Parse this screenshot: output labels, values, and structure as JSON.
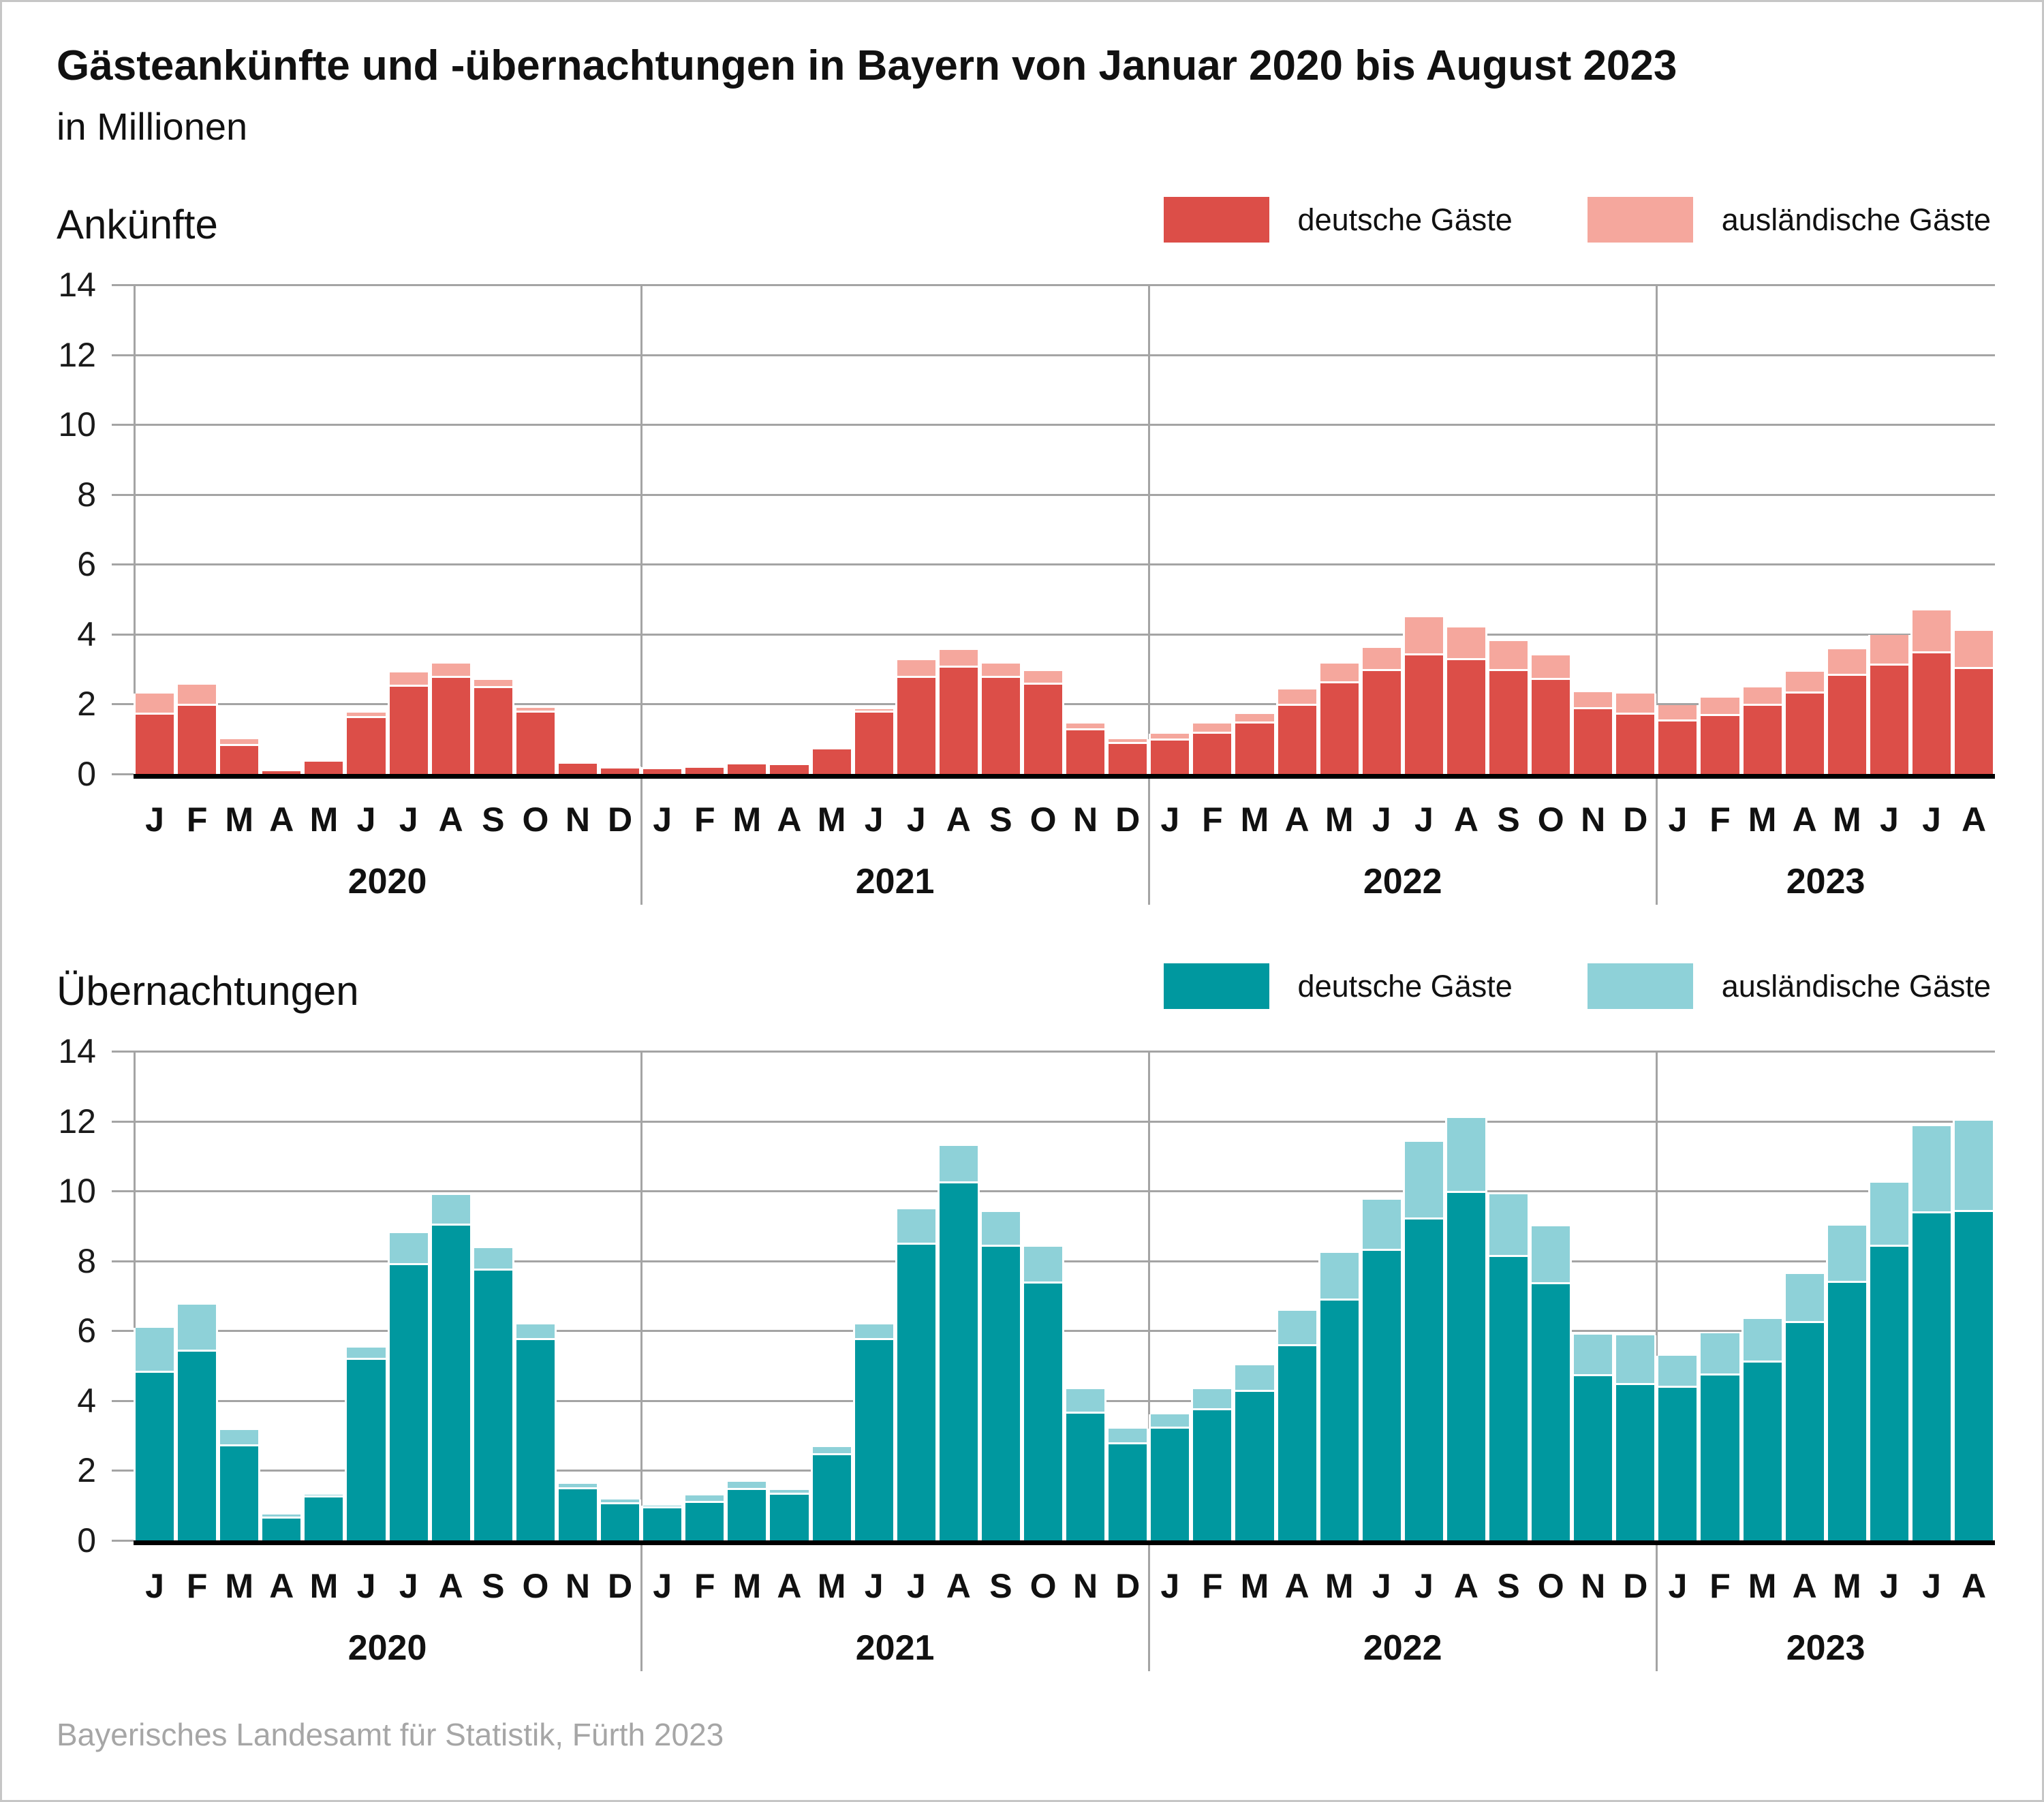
{
  "header": {
    "title": "Gästeankünfte und -übernachtungen in Bayern von Januar 2020 bis August 2023",
    "subtitle": "in Millionen"
  },
  "source": "Bayerisches Landesamt für Statistik, Fürth 2023",
  "colors": {
    "arrivals_domestic": "#dc4e48",
    "arrivals_foreign": "#f5a79d",
    "overnights_domestic": "#00989f",
    "overnights_foreign": "#8ed1d8",
    "gridline": "#a4a4a4",
    "baseline": "#000000",
    "source_text": "#a6a6a6"
  },
  "chart_data": [
    {
      "type": "bar",
      "stacked": true,
      "title": "Ankünfte",
      "unit": "Millionen",
      "ylim": [
        0,
        14
      ],
      "yticks": [
        0,
        2,
        4,
        6,
        8,
        10,
        12,
        14
      ],
      "grid": true,
      "legend_position": "top-right",
      "year_groups": [
        {
          "label": "2020",
          "months": [
            "J",
            "F",
            "M",
            "A",
            "M",
            "J",
            "J",
            "A",
            "S",
            "O",
            "N",
            "D"
          ]
        },
        {
          "label": "2021",
          "months": [
            "J",
            "F",
            "M",
            "A",
            "M",
            "J",
            "J",
            "A",
            "S",
            "O",
            "N",
            "D"
          ]
        },
        {
          "label": "2022",
          "months": [
            "J",
            "F",
            "M",
            "A",
            "M",
            "J",
            "J",
            "A",
            "S",
            "O",
            "N",
            "D"
          ]
        },
        {
          "label": "2023",
          "months": [
            "J",
            "F",
            "M",
            "A",
            "M",
            "J",
            "J",
            "A"
          ]
        }
      ],
      "series": [
        {
          "name": "deutsche Gäste",
          "color": "#dc4e48",
          "values": [
            1.7,
            1.95,
            0.8,
            0.08,
            0.35,
            1.6,
            2.5,
            2.75,
            2.45,
            1.75,
            0.3,
            0.15,
            0.13,
            0.17,
            0.28,
            0.25,
            0.7,
            1.75,
            2.75,
            3.05,
            2.75,
            2.55,
            1.25,
            0.85,
            0.95,
            1.15,
            1.45,
            1.95,
            2.6,
            2.95,
            3.4,
            3.25,
            2.95,
            2.7,
            1.85,
            1.7,
            1.5,
            1.65,
            1.95,
            2.3,
            2.8,
            3.1,
            3.45,
            3.0
          ]
        },
        {
          "name": "ausländische Gäste",
          "color": "#f5a79d",
          "values": [
            0.6,
            0.6,
            0.2,
            0.02,
            0.03,
            0.15,
            0.4,
            0.4,
            0.25,
            0.15,
            0.04,
            0.03,
            0.03,
            0.03,
            0.04,
            0.04,
            0.05,
            0.1,
            0.5,
            0.5,
            0.4,
            0.4,
            0.2,
            0.15,
            0.2,
            0.3,
            0.27,
            0.47,
            0.56,
            0.66,
            1.08,
            0.94,
            0.86,
            0.69,
            0.49,
            0.6,
            0.47,
            0.53,
            0.53,
            0.63,
            0.77,
            0.88,
            1.23,
            1.1
          ]
        }
      ]
    },
    {
      "type": "bar",
      "stacked": true,
      "title": "Übernachtungen",
      "unit": "Millionen",
      "ylim": [
        0,
        14
      ],
      "yticks": [
        0,
        2,
        4,
        6,
        8,
        10,
        12,
        14
      ],
      "grid": true,
      "legend_position": "top-right",
      "year_groups": [
        {
          "label": "2020",
          "months": [
            "J",
            "F",
            "M",
            "A",
            "M",
            "J",
            "J",
            "A",
            "S",
            "O",
            "N",
            "D"
          ]
        },
        {
          "label": "2021",
          "months": [
            "J",
            "F",
            "M",
            "A",
            "M",
            "J",
            "J",
            "A",
            "S",
            "O",
            "N",
            "D"
          ]
        },
        {
          "label": "2022",
          "months": [
            "J",
            "F",
            "M",
            "A",
            "M",
            "J",
            "J",
            "A",
            "S",
            "O",
            "N",
            "D"
          ]
        },
        {
          "label": "2023",
          "months": [
            "J",
            "F",
            "M",
            "A",
            "M",
            "J",
            "J",
            "A"
          ]
        }
      ],
      "series": [
        {
          "name": "deutsche Gäste",
          "color": "#00989f",
          "values": [
            4.8,
            5.4,
            2.7,
            0.62,
            1.22,
            5.17,
            7.87,
            9.0,
            7.72,
            5.74,
            1.47,
            1.03,
            0.91,
            1.08,
            1.44,
            1.3,
            2.44,
            5.74,
            8.47,
            10.22,
            8.41,
            7.36,
            3.63,
            2.74,
            3.19,
            3.72,
            4.26,
            5.56,
            6.86,
            8.28,
            9.19,
            9.94,
            8.11,
            7.33,
            4.7,
            4.44,
            4.36,
            4.72,
            5.08,
            6.22,
            7.37,
            8.41,
            9.36,
            9.39
          ]
        },
        {
          "name": "ausländische Gäste",
          "color": "#8ed1d8",
          "values": [
            1.28,
            1.35,
            0.45,
            0.13,
            0.08,
            0.35,
            0.92,
            0.89,
            0.65,
            0.45,
            0.14,
            0.14,
            0.09,
            0.2,
            0.23,
            0.15,
            0.23,
            0.45,
            1.01,
            1.08,
            0.98,
            1.05,
            0.7,
            0.45,
            0.42,
            0.61,
            0.76,
            1.02,
            1.36,
            1.46,
            2.22,
            2.14,
            1.8,
            1.65,
            1.19,
            1.42,
            0.92,
            1.2,
            1.25,
            1.41,
            1.63,
            1.83,
            2.5,
            2.63
          ]
        }
      ]
    }
  ]
}
